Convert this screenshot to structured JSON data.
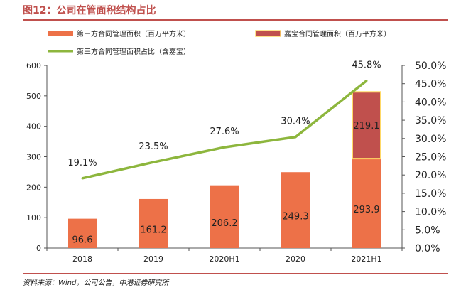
{
  "header": {
    "title": "图12：公司在管面积结构占比"
  },
  "footer": {
    "source": "资料来源：Wind，公司公告，中港证券研究所"
  },
  "colors": {
    "third_party_bar": "#ed7148",
    "jiabao_bar": "#c0504d",
    "jiabao_border": "#ffd966",
    "share_line": "#8db63d",
    "title": "#c0504d"
  },
  "chart_data": {
    "type": "bar",
    "stacked": true,
    "categories": [
      "2018",
      "2019",
      "2020H1",
      "2020",
      "2021H1"
    ],
    "series": [
      {
        "name": "第三方合同管理面积（百万平方米）",
        "type": "bar",
        "axis": "left",
        "values": [
          96.6,
          161.2,
          206.2,
          249.3,
          293.9
        ],
        "labels": [
          "96.6",
          "161.2",
          "206.2",
          "249.3",
          "293.9"
        ]
      },
      {
        "name": "嘉宝合同管理面积（百万平方米）",
        "type": "bar",
        "axis": "left",
        "values": [
          null,
          null,
          null,
          null,
          219.1
        ],
        "labels": [
          "",
          "",
          "",
          "",
          "219.1"
        ]
      },
      {
        "name": "第三方合同管理面积占比（含嘉宝）",
        "type": "line",
        "axis": "right",
        "values": [
          19.1,
          23.5,
          27.6,
          30.4,
          45.8
        ],
        "labels": [
          "19.1%",
          "23.5%",
          "27.6%",
          "30.4%",
          "45.8%"
        ]
      }
    ],
    "ylim": [
      0,
      600
    ],
    "yticks": [
      "0",
      "100",
      "200",
      "300",
      "400",
      "500",
      "600"
    ],
    "y2lim": [
      0,
      50
    ],
    "y2ticks": [
      "0.0%",
      "5.0%",
      "10.0%",
      "15.0%",
      "20.0%",
      "25.0%",
      "30.0%",
      "35.0%",
      "40.0%",
      "45.0%",
      "50.0%"
    ],
    "legend": "top",
    "grid": false
  }
}
